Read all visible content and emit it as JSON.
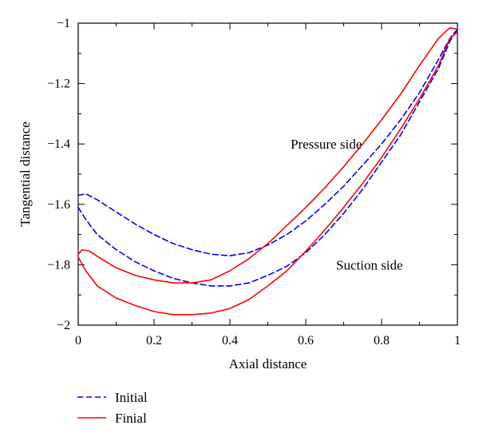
{
  "chart_data": {
    "type": "line",
    "title": "",
    "xlabel": "Axial distance",
    "ylabel": "Tangential distance",
    "xlim": [
      0,
      1
    ],
    "ylim": [
      -2,
      -1
    ],
    "x_ticks": [
      0,
      0.2,
      0.4,
      0.6,
      0.8,
      1
    ],
    "x_tick_labels": [
      "0",
      "0.2",
      "0.4",
      "0.6",
      "0.8",
      "1"
    ],
    "y_ticks": [
      -2,
      -1.8,
      -1.6,
      -1.4,
      -1.2,
      -1
    ],
    "y_tick_labels": [
      "−2",
      "−1.8",
      "−1.6",
      "−1.4",
      "−1.2",
      "−1"
    ],
    "grid": false,
    "legend_position": "below-left",
    "annotations": [
      {
        "text": "Pressure side",
        "x": 0.56,
        "y": -1.4
      },
      {
        "text": "Suction side",
        "x": 0.68,
        "y": -1.8
      }
    ],
    "series": [
      {
        "name": "Initial",
        "color": "#0000ff",
        "style": "dashed",
        "segments": [
          {
            "part": "upper",
            "x": [
              0,
              0.02,
              0.05,
              0.1,
              0.15,
              0.2,
              0.25,
              0.3,
              0.35,
              0.4,
              0.45,
              0.5,
              0.55,
              0.6,
              0.65,
              0.7,
              0.75,
              0.8,
              0.85,
              0.9,
              0.95,
              0.98,
              1
            ],
            "y": [
              -1.57,
              -1.565,
              -1.585,
              -1.625,
              -1.665,
              -1.7,
              -1.73,
              -1.75,
              -1.765,
              -1.77,
              -1.76,
              -1.735,
              -1.7,
              -1.655,
              -1.6,
              -1.54,
              -1.47,
              -1.4,
              -1.32,
              -1.23,
              -1.12,
              -1.05,
              -1.02
            ]
          },
          {
            "part": "lower",
            "x": [
              0,
              0.02,
              0.05,
              0.1,
              0.15,
              0.2,
              0.25,
              0.3,
              0.35,
              0.4,
              0.45,
              0.5,
              0.55,
              0.6,
              0.65,
              0.7,
              0.75,
              0.8,
              0.85,
              0.9,
              0.95,
              0.98,
              1
            ],
            "y": [
              -1.61,
              -1.65,
              -1.7,
              -1.75,
              -1.79,
              -1.82,
              -1.845,
              -1.86,
              -1.87,
              -1.87,
              -1.86,
              -1.835,
              -1.805,
              -1.76,
              -1.7,
              -1.63,
              -1.55,
              -1.46,
              -1.37,
              -1.26,
              -1.15,
              -1.06,
              -1.02
            ]
          }
        ]
      },
      {
        "name": "Finial",
        "color": "#ff0000",
        "style": "solid",
        "segments": [
          {
            "part": "upper",
            "x": [
              0,
              0.01,
              0.03,
              0.06,
              0.1,
              0.15,
              0.2,
              0.25,
              0.3,
              0.35,
              0.4,
              0.45,
              0.5,
              0.55,
              0.6,
              0.65,
              0.7,
              0.75,
              0.8,
              0.85,
              0.9,
              0.95,
              0.98,
              1
            ],
            "y": [
              -1.765,
              -1.75,
              -1.755,
              -1.78,
              -1.81,
              -1.835,
              -1.85,
              -1.86,
              -1.86,
              -1.85,
              -1.82,
              -1.78,
              -1.73,
              -1.67,
              -1.61,
              -1.545,
              -1.475,
              -1.4,
              -1.32,
              -1.235,
              -1.14,
              -1.05,
              -1.015,
              -1.02
            ]
          },
          {
            "part": "lower",
            "x": [
              0,
              0.02,
              0.05,
              0.1,
              0.15,
              0.2,
              0.25,
              0.3,
              0.35,
              0.4,
              0.45,
              0.5,
              0.55,
              0.6,
              0.65,
              0.7,
              0.75,
              0.8,
              0.85,
              0.9,
              0.95,
              0.98,
              1
            ],
            "y": [
              -1.775,
              -1.82,
              -1.87,
              -1.91,
              -1.935,
              -1.955,
              -1.965,
              -1.965,
              -1.96,
              -1.945,
              -1.915,
              -1.87,
              -1.82,
              -1.755,
              -1.685,
              -1.61,
              -1.53,
              -1.445,
              -1.35,
              -1.25,
              -1.14,
              -1.05,
              -1.03
            ]
          }
        ]
      }
    ]
  }
}
